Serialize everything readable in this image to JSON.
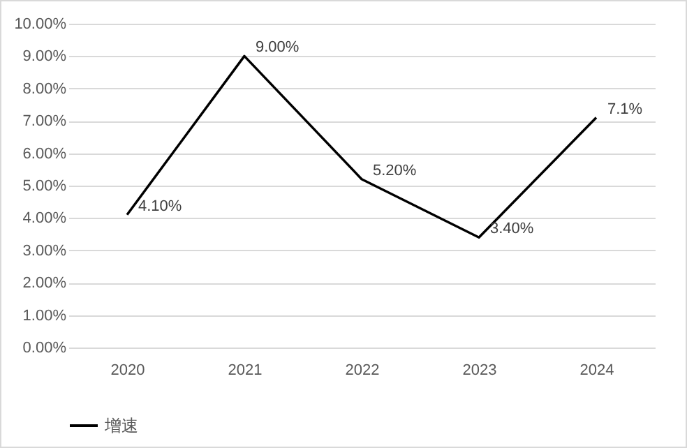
{
  "chart_data": {
    "type": "line",
    "categories": [
      "2020",
      "2021",
      "2022",
      "2023",
      "2024"
    ],
    "series": [
      {
        "name": "增速",
        "color": "#000000",
        "values": [
          4.1,
          9.0,
          5.2,
          3.4,
          7.1
        ],
        "value_labels": [
          "4.10%",
          "9.00%",
          "5.20%",
          "3.40%",
          "7.1%"
        ]
      }
    ],
    "ylim": [
      0,
      10
    ],
    "yticks": [
      {
        "value": 0,
        "label": "0.00%"
      },
      {
        "value": 1,
        "label": "1.00%"
      },
      {
        "value": 2,
        "label": "2.00%"
      },
      {
        "value": 3,
        "label": "3.00%"
      },
      {
        "value": 4,
        "label": "4.00%"
      },
      {
        "value": 5,
        "label": "5.00%"
      },
      {
        "value": 6,
        "label": "6.00%"
      },
      {
        "value": 7,
        "label": "7.00%"
      },
      {
        "value": 8,
        "label": "8.00%"
      },
      {
        "value": 9,
        "label": "9.00%"
      },
      {
        "value": 10,
        "label": "10.00%"
      }
    ],
    "grid": "y",
    "legend": "bottom",
    "marker": "none",
    "line_style": "solid"
  }
}
